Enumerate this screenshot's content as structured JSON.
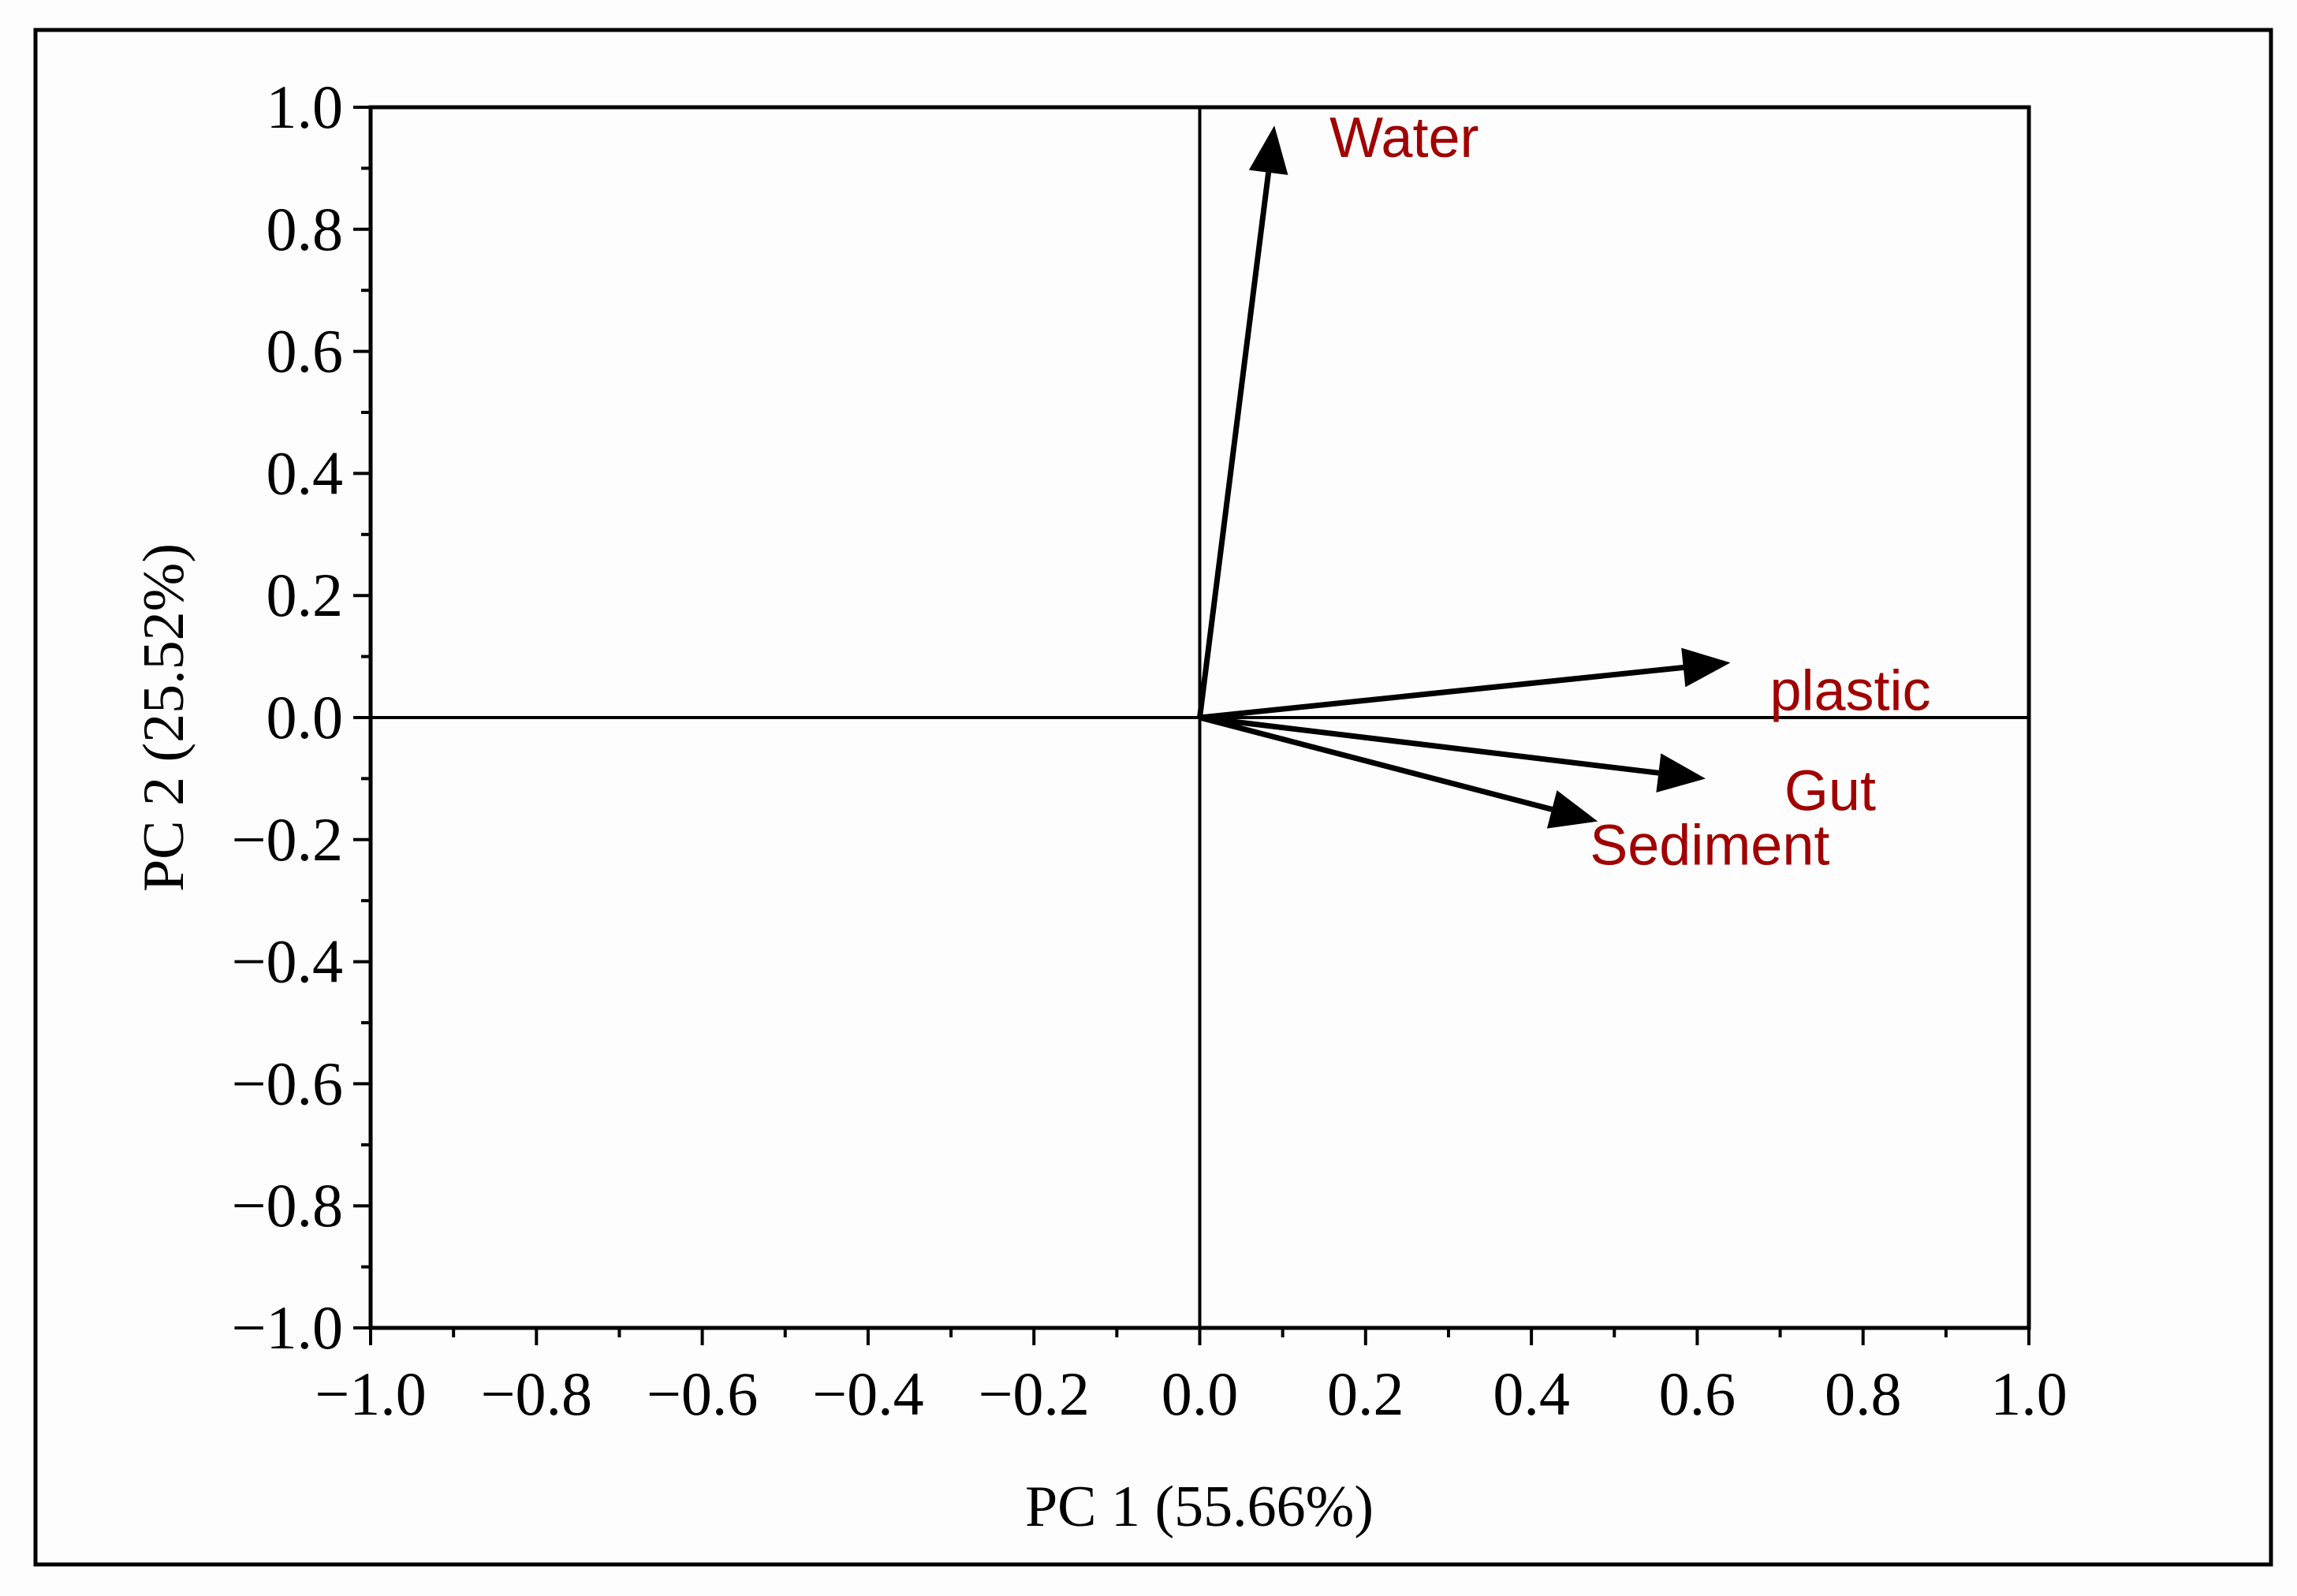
{
  "chart_data": {
    "type": "biplot",
    "xlabel": "PC 1 (55.66%)",
    "ylabel": "PC 2 (25.52%)",
    "xlim": [
      -1.0,
      1.0
    ],
    "ylim": [
      -1.0,
      1.0
    ],
    "xticks": [
      "−1.0",
      "−0.8",
      "−0.6",
      "−0.4",
      "−0.2",
      "0.0",
      "0.2",
      "0.4",
      "0.6",
      "0.8",
      "1.0"
    ],
    "yticks": [
      "−1.0",
      "−0.8",
      "−0.6",
      "−0.4",
      "−0.2",
      "0.0",
      "0.2",
      "0.4",
      "0.6",
      "0.8",
      "1.0"
    ],
    "grid": false,
    "label_color": "#a00000",
    "arrow_color": "#000000",
    "vectors": [
      {
        "name": "Water",
        "x": 0.09,
        "y": 0.97
      },
      {
        "name": "plastic",
        "x": 0.64,
        "y": 0.09
      },
      {
        "name": "Gut",
        "x": 0.61,
        "y": -0.1
      },
      {
        "name": "Sediment",
        "x": 0.48,
        "y": -0.17
      }
    ]
  }
}
